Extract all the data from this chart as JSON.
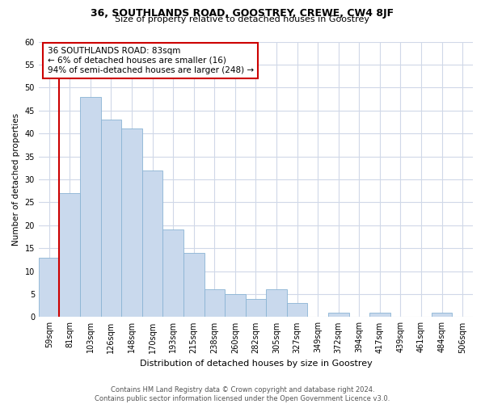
{
  "title": "36, SOUTHLANDS ROAD, GOOSTREY, CREWE, CW4 8JF",
  "subtitle": "Size of property relative to detached houses in Goostrey",
  "xlabel": "Distribution of detached houses by size in Goostrey",
  "ylabel": "Number of detached properties",
  "bin_labels": [
    "59sqm",
    "81sqm",
    "103sqm",
    "126sqm",
    "148sqm",
    "170sqm",
    "193sqm",
    "215sqm",
    "238sqm",
    "260sqm",
    "282sqm",
    "305sqm",
    "327sqm",
    "349sqm",
    "372sqm",
    "394sqm",
    "417sqm",
    "439sqm",
    "461sqm",
    "484sqm",
    "506sqm"
  ],
  "bar_heights": [
    13,
    27,
    48,
    43,
    41,
    32,
    19,
    14,
    6,
    5,
    4,
    6,
    3,
    0,
    1,
    0,
    1,
    0,
    0,
    1,
    0
  ],
  "bar_color": "#c9d9ed",
  "bar_edge_color": "#8ab4d4",
  "red_line_x": 1.0,
  "annotation_box_text": "36 SOUTHLANDS ROAD: 83sqm\n← 6% of detached houses are smaller (16)\n94% of semi-detached houses are larger (248) →",
  "annotation_box_edge_color": "#cc0000",
  "red_line_color": "#cc0000",
  "ylim": [
    0,
    60
  ],
  "yticks": [
    0,
    5,
    10,
    15,
    20,
    25,
    30,
    35,
    40,
    45,
    50,
    55,
    60
  ],
  "footer_line1": "Contains HM Land Registry data © Crown copyright and database right 2024.",
  "footer_line2": "Contains public sector information licensed under the Open Government Licence v3.0.",
  "background_color": "#ffffff",
  "grid_color": "#d0d8e8"
}
